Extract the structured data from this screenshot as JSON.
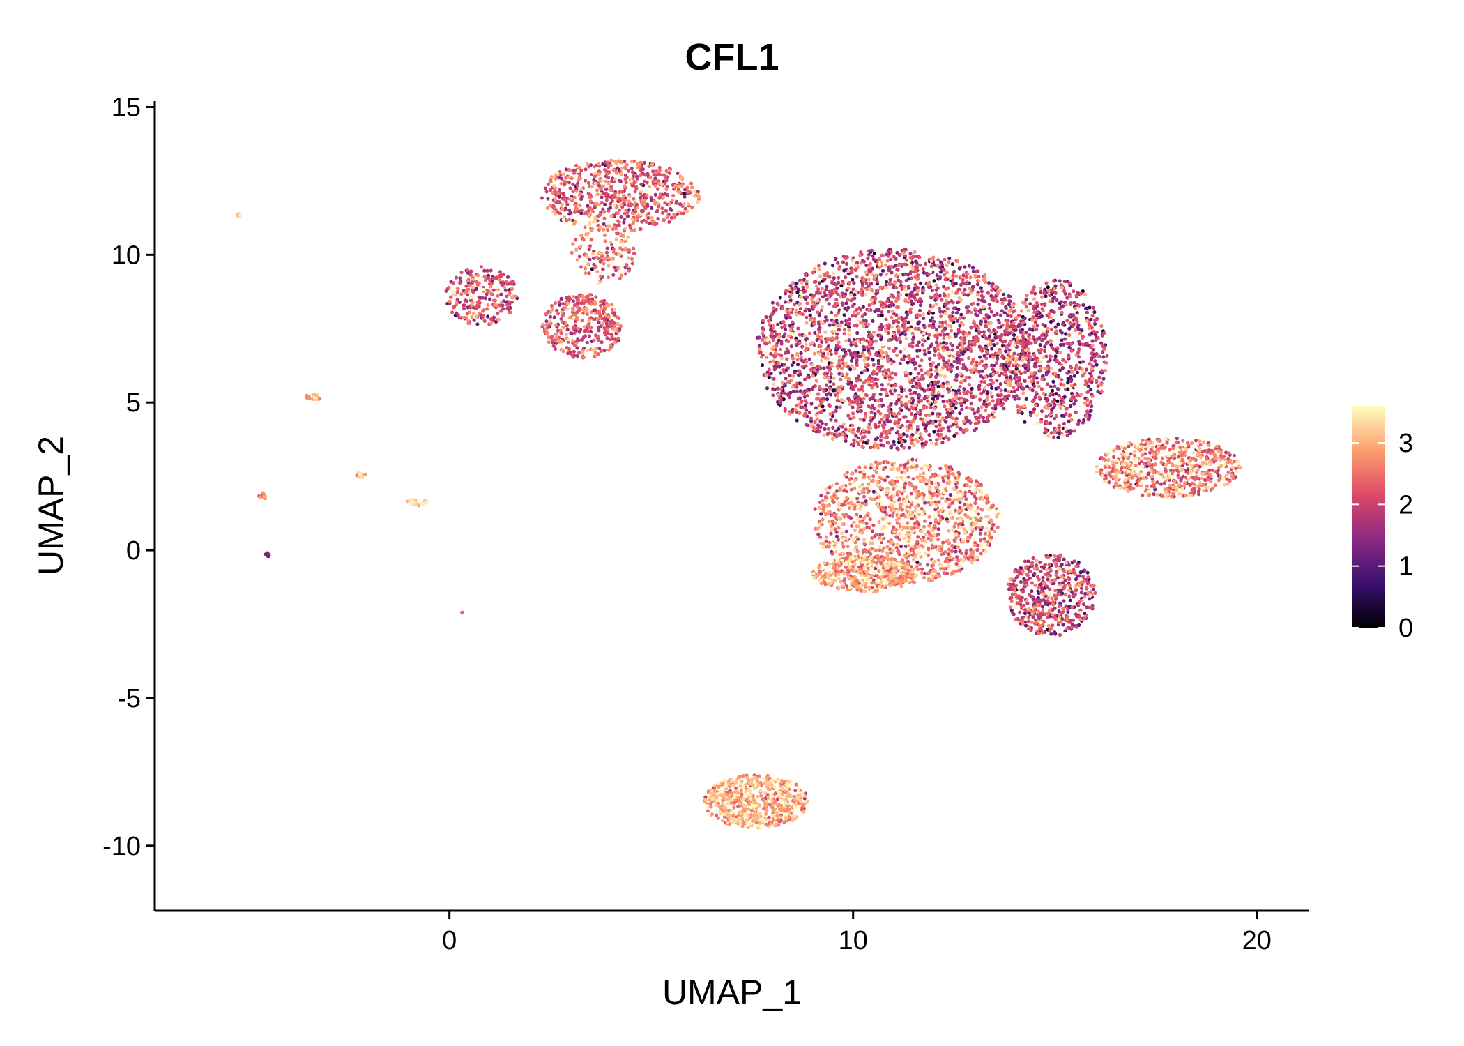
{
  "chart_data": {
    "type": "scatter",
    "title": "CFL1",
    "xlabel": "UMAP_1",
    "ylabel": "UMAP_2",
    "xlim": [
      -7.3,
      21.3
    ],
    "ylim": [
      -12.2,
      15.2
    ],
    "xticks": [
      0,
      10,
      20
    ],
    "xtick_labels": [
      "0",
      "10",
      "20"
    ],
    "yticks": [
      -10,
      -5,
      0,
      5,
      10,
      15
    ],
    "ytick_labels": [
      "-10",
      "-5",
      "0",
      "5",
      "10",
      "15"
    ],
    "grid": false,
    "legend": {
      "placement": "right",
      "title": "",
      "range": [
        0,
        3.6
      ],
      "ticks": [
        0,
        1,
        2,
        3
      ],
      "tick_labels": [
        "0",
        "1",
        "2",
        "3"
      ],
      "colormap": [
        "#000004",
        "#3b0f70",
        "#8c2981",
        "#de4968",
        "#fe9f6d",
        "#fcfdbf"
      ]
    },
    "clusters": [
      {
        "name": "top-left-blob",
        "cx": 4.2,
        "cy": 12.0,
        "rx": 2.0,
        "ry": 1.2,
        "n": 620,
        "mean": 2.2,
        "sd": 0.55
      },
      {
        "name": "top-left-tail",
        "cx": 3.8,
        "cy": 10.0,
        "rx": 0.8,
        "ry": 1.0,
        "n": 120,
        "mean": 2.3,
        "sd": 0.5
      },
      {
        "name": "small-left-cluster",
        "cx": 0.8,
        "cy": 8.6,
        "rx": 0.9,
        "ry": 1.0,
        "n": 220,
        "mean": 2.1,
        "sd": 0.55
      },
      {
        "name": "mid-left-cluster",
        "cx": 3.3,
        "cy": 7.6,
        "rx": 1.0,
        "ry": 1.1,
        "n": 330,
        "mean": 2.2,
        "sd": 0.5
      },
      {
        "name": "main-upper-blob",
        "cx": 11.0,
        "cy": 6.8,
        "rx": 3.4,
        "ry": 3.4,
        "n": 2600,
        "mean": 1.9,
        "sd": 0.65
      },
      {
        "name": "main-right-lobe",
        "cx": 15.0,
        "cy": 6.5,
        "rx": 1.3,
        "ry": 2.7,
        "n": 700,
        "mean": 1.8,
        "sd": 0.65
      },
      {
        "name": "main-lower-arm",
        "cx": 11.3,
        "cy": 1.0,
        "rx": 2.3,
        "ry": 2.1,
        "n": 1100,
        "mean": 2.6,
        "sd": 0.55
      },
      {
        "name": "bottom-left-foot",
        "cx": 10.3,
        "cy": -0.8,
        "rx": 1.3,
        "ry": 0.6,
        "n": 350,
        "mean": 2.7,
        "sd": 0.5
      },
      {
        "name": "right-low-cluster",
        "cx": 14.9,
        "cy": -1.5,
        "rx": 1.1,
        "ry": 1.4,
        "n": 480,
        "mean": 1.9,
        "sd": 0.6
      },
      {
        "name": "far-right-cluster",
        "cx": 17.8,
        "cy": 2.8,
        "rx": 1.8,
        "ry": 1.0,
        "n": 600,
        "mean": 2.5,
        "sd": 0.55
      },
      {
        "name": "bottom-cluster",
        "cx": 7.6,
        "cy": -8.5,
        "rx": 1.3,
        "ry": 0.9,
        "n": 520,
        "mean": 2.9,
        "sd": 0.4
      },
      {
        "name": "outlier-a",
        "cx": -5.2,
        "cy": 11.35,
        "rx": 0.06,
        "ry": 0.05,
        "n": 6,
        "mean": 3.2,
        "sd": 0.2
      },
      {
        "name": "outlier-b",
        "cx": -3.4,
        "cy": 5.2,
        "rx": 0.2,
        "ry": 0.15,
        "n": 18,
        "mean": 2.8,
        "sd": 0.3
      },
      {
        "name": "outlier-c",
        "cx": -2.2,
        "cy": 2.55,
        "rx": 0.12,
        "ry": 0.1,
        "n": 12,
        "mean": 3.0,
        "sd": 0.3
      },
      {
        "name": "outlier-d",
        "cx": -0.8,
        "cy": 1.6,
        "rx": 0.3,
        "ry": 0.15,
        "n": 20,
        "mean": 3.1,
        "sd": 0.3
      },
      {
        "name": "outlier-e",
        "cx": -4.6,
        "cy": 1.85,
        "rx": 0.12,
        "ry": 0.1,
        "n": 12,
        "mean": 2.5,
        "sd": 0.3
      },
      {
        "name": "outlier-f",
        "cx": -4.5,
        "cy": -0.15,
        "rx": 0.08,
        "ry": 0.06,
        "n": 10,
        "mean": 1.0,
        "sd": 0.2
      },
      {
        "name": "outlier-g",
        "cx": 0.3,
        "cy": -2.1,
        "rx": 0.02,
        "ry": 0.02,
        "n": 2,
        "mean": 2.5,
        "sd": 0.2
      }
    ]
  }
}
